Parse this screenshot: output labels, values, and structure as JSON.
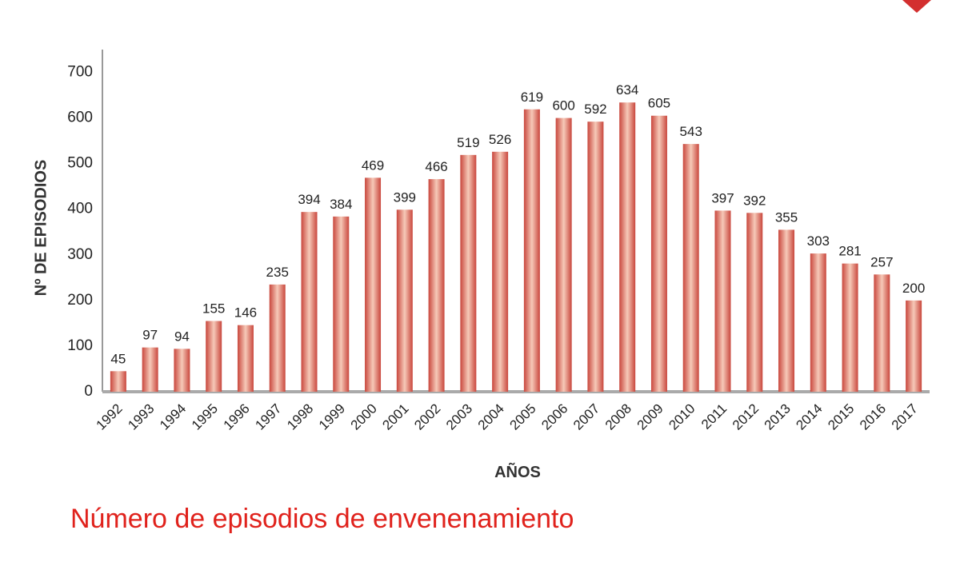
{
  "chart_data": {
    "type": "bar",
    "title": "Número de episodios de envenenamiento",
    "x_label": "AÑOS",
    "y_label": "Nº DE EPISODIOS",
    "categories": [
      "1992",
      "1993",
      "1994",
      "1995",
      "1996",
      "1997",
      "1998",
      "1999",
      "2000",
      "2001",
      "2002",
      "2003",
      "2004",
      "2005",
      "2006",
      "2007",
      "2008",
      "2009",
      "2010",
      "2011",
      "2012",
      "2013",
      "2014",
      "2015",
      "2016",
      "2017"
    ],
    "values": [
      45,
      97,
      94,
      155,
      146,
      235,
      394,
      384,
      469,
      399,
      466,
      519,
      526,
      619,
      600,
      592,
      634,
      605,
      543,
      397,
      392,
      355,
      303,
      281,
      257,
      200
    ],
    "color": "#c9473d",
    "ylim": [
      0,
      750
    ],
    "yticks": [
      0,
      100,
      200,
      300,
      400,
      500,
      600,
      700
    ],
    "grid": false
  }
}
